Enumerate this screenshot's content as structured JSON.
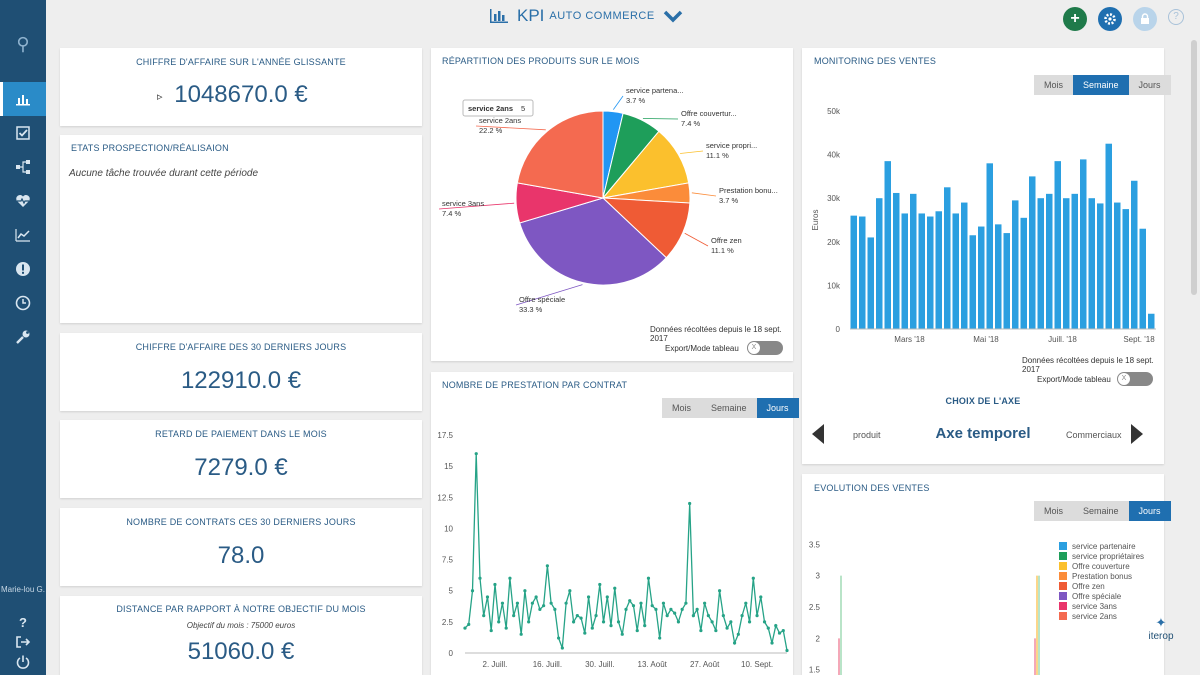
{
  "header": {
    "title": "KPI",
    "subtitle": "AUTO COMMERCE",
    "colors": {
      "add": "#1f7a4a",
      "settings": "#1f6fb0",
      "lock": "#b9d4ea"
    },
    "help": "?"
  },
  "sidebar": {
    "items": [
      {
        "icon": "bar-chart-icon",
        "active": true
      },
      {
        "icon": "checkbox-icon"
      },
      {
        "icon": "process-icon"
      },
      {
        "icon": "heartbeat-icon"
      },
      {
        "icon": "line-chart-icon"
      },
      {
        "icon": "alert-icon"
      },
      {
        "icon": "clock-icon"
      },
      {
        "icon": "wrench-icon"
      }
    ],
    "user": "Marie-lou G.",
    "bottom_icons": [
      "question-icon",
      "logout-icon",
      "power-icon"
    ]
  },
  "kpis": {
    "ca_annee": {
      "title": "Chiffre d'affaire sur l'année glissante",
      "value": "1048670.0 €"
    },
    "etats": {
      "title": "Etats prospection/réalisaion",
      "empty": "Aucune tâche trouvée durant cette période"
    },
    "ca_30": {
      "title": "Chiffre d'affaire des 30 derniers jours",
      "value": "122910.0 €"
    },
    "retard": {
      "title": "Retard de paiement dans le mois",
      "value": "7279.0 €"
    },
    "contrats": {
      "title": "Nombre de contrats ces 30 derniers jours",
      "value": "78.0"
    },
    "distance": {
      "title": "Distance par rapport à notre objectif du mois",
      "subtitle": "Objectif du mois : 75000 euros",
      "value": "51060.0 €"
    }
  },
  "pie_card": {
    "title": "Répartition des produits sur le mois",
    "footer": "Données récoltées depuis le 18 sept. 2017",
    "export_label": "Export/Mode tableau",
    "tooltip": {
      "name": "service 2ans",
      "value": "5"
    }
  },
  "monitoring_card": {
    "title": "Monitoring des ventes",
    "tabs": [
      "Mois",
      "Semaine",
      "Jours"
    ],
    "active_tab": "Semaine",
    "footer": "Données récoltées depuis le 18 sept. 2017",
    "export_label": "Export/Mode tableau",
    "axis_heading": "Choix de l'axe",
    "axis_left": "produit",
    "axis_center": "Axe temporel",
    "axis_right": "Commerciaux"
  },
  "prestation_card": {
    "title": "Nombre de prestation par contrat",
    "tabs": [
      "Mois",
      "Semaine",
      "Jours"
    ],
    "active_tab": "Jours"
  },
  "evolution_card": {
    "title": "Evolution des ventes",
    "tabs": [
      "Mois",
      "Semaine",
      "Jours"
    ],
    "active_tab": "Jours"
  },
  "brand": "iterop",
  "chart_data": [
    {
      "type": "pie",
      "title": "",
      "categories": [
        "service partenaire",
        "Offre couverture",
        "service propriétaires",
        "Prestation bonus",
        "Offre zen",
        "Offre spéciale",
        "service 3ans",
        "service 2ans"
      ],
      "labels": [
        "service partena...",
        "Offre couvertur...",
        "service propri...",
        "Prestation bonu...",
        "Offre zen",
        "Offre spéciale",
        "service 3ans",
        "service 2ans"
      ],
      "values": [
        3.7,
        7.4,
        11.1,
        3.7,
        11.1,
        33.3,
        7.4,
        22.2
      ],
      "value_labels": [
        "3.7 %",
        "7.4 %",
        "11.1 %",
        "3.7 %",
        "11.1 %",
        "33.3 %",
        "7.4 %",
        "22.2 %"
      ],
      "colors": [
        "#2196f3",
        "#1e9e5a",
        "#fbc02d",
        "#fb8c3a",
        "#ef5b35",
        "#7e57c2",
        "#e9356b",
        "#f46a50"
      ]
    },
    {
      "type": "bar",
      "title": "",
      "ylabel": "Euros",
      "ylim": [
        0,
        50000
      ],
      "yticks": [
        "0",
        "10k",
        "20k",
        "30k",
        "40k",
        "50k"
      ],
      "xticks": [
        "Mars '18",
        "Mai '18",
        "Juill. '18",
        "Sept. '18"
      ],
      "xtick_positions": [
        7,
        16,
        25,
        34
      ],
      "values": [
        26000,
        25800,
        21000,
        30000,
        38500,
        31200,
        26500,
        31000,
        26500,
        25800,
        27000,
        32500,
        26500,
        29000,
        21500,
        23500,
        38000,
        24000,
        22000,
        29500,
        25500,
        35000,
        30000,
        31000,
        38500,
        30000,
        31000,
        38900,
        30000,
        28800,
        42500,
        29000,
        27500,
        34000,
        23000,
        3500
      ],
      "color": "#2b9fe0"
    },
    {
      "type": "line",
      "title": "",
      "ylim": [
        0,
        17.5
      ],
      "yticks": [
        "0",
        "2.5",
        "5",
        "7.5",
        "10",
        "12.5",
        "15",
        "17.5"
      ],
      "xticks": [
        "2. Juill.",
        "16. Juill.",
        "30. Juill.",
        "13. Août",
        "27. Août",
        "10. Sept."
      ],
      "xtick_positions": [
        8,
        22,
        36,
        50,
        64,
        78
      ],
      "values": [
        2,
        2.3,
        5,
        16,
        6,
        3,
        4.5,
        1.8,
        5.5,
        2.5,
        4,
        2,
        6,
        3,
        4,
        1.5,
        5,
        2.5,
        4,
        4.5,
        3.5,
        3.8,
        7,
        4,
        3.5,
        1.2,
        0.4,
        4,
        5,
        2.5,
        3,
        2.8,
        1.6,
        4.5,
        2,
        3,
        5.5,
        2.5,
        4.5,
        2.2,
        5.2,
        2.5,
        1.5,
        3.5,
        4.2,
        3.8,
        1.8,
        4,
        2.2,
        6,
        3.8,
        3.5,
        1.2,
        4,
        3,
        3.5,
        3.2,
        2.5,
        3.5,
        4,
        12,
        3,
        3.5,
        1.8,
        4,
        3,
        2.5,
        1.8,
        5,
        3,
        2,
        2.5,
        0.8,
        1.5,
        3,
        4,
        2.5,
        6,
        3,
        4.5,
        2.5,
        2,
        0.8,
        2.2,
        1.6,
        1.8,
        0.2
      ],
      "color": "#26a387"
    },
    {
      "type": "bar",
      "title": "",
      "yticks": [
        "1.5",
        "2",
        "2.5",
        "3",
        "3.5"
      ],
      "ylim": [
        1.4,
        3.6
      ],
      "legend": [
        "service partenaire",
        "service propriétaires",
        "Offre couverture",
        "Prestation bonus",
        "Offre zen",
        "Offre spéciale",
        "service 3ans",
        "service 2ans"
      ],
      "legend_colors": [
        "#2b9fe0",
        "#1e9e5a",
        "#fbc02d",
        "#fb8c3a",
        "#ef5b35",
        "#7e57c2",
        "#e9356b",
        "#f46a50"
      ],
      "legend_position": "top-right"
    }
  ]
}
